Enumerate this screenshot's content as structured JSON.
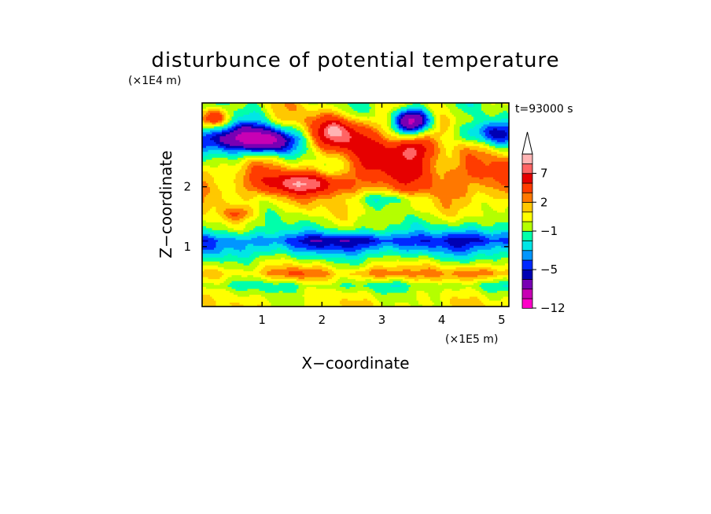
{
  "chart_data": {
    "type": "heatmap",
    "title": "disturbunce of potential temperature",
    "time_label": "t=93000 s",
    "xlabel": "X−coordinate",
    "ylabel": "Z−coordinate",
    "x_scale_label": "(×1E5 m)",
    "y_scale_label": "(×1E4 m)",
    "xlim": [
      0,
      5.12
    ],
    "ylim": [
      0,
      3.4
    ],
    "x_ticks": [
      1,
      2,
      3,
      4,
      5
    ],
    "y_ticks": [
      1,
      2
    ],
    "colorbar": {
      "levels": [
        -12,
        -10,
        -8,
        -6,
        -5,
        -4,
        -3,
        -2,
        -1,
        0,
        1,
        2,
        3,
        5,
        7,
        9,
        11
      ],
      "tick_values": [
        -12,
        -5,
        -1,
        2,
        7
      ],
      "tick_labels": [
        "−12",
        "−5",
        "−1",
        "2",
        "7"
      ],
      "colors": [
        "#ff00c8",
        "#c800b4",
        "#7800b4",
        "#0000b4",
        "#0028ff",
        "#0096ff",
        "#00e6e6",
        "#00ffaa",
        "#b4ff00",
        "#ffff00",
        "#ffc800",
        "#ff7800",
        "#ff3c00",
        "#e60000",
        "#ff6464",
        "#ffb4b4"
      ],
      "extend": "max",
      "position": "right"
    },
    "bands": [
      {
        "z": 0.05,
        "value": 0.5,
        "amp": 0.7
      },
      {
        "z": 0.2,
        "value": 0.0,
        "amp": 0.7
      },
      {
        "z": 0.35,
        "value": -1.2,
        "amp": 0.8
      },
      {
        "z": 0.55,
        "value": 1.5,
        "amp": 0.8
      },
      {
        "z": 0.75,
        "value": -0.5,
        "amp": 0.8
      },
      {
        "z": 0.95,
        "value": -3.0,
        "amp": 0.8
      },
      {
        "z": 1.1,
        "value": -4.0,
        "amp": 0.7
      },
      {
        "z": 1.3,
        "value": -1.0,
        "amp": 0.8
      },
      {
        "z": 1.6,
        "value": 0.3,
        "amp": 0.9
      },
      {
        "z": 1.9,
        "value": 1.8,
        "amp": 1.0
      },
      {
        "z": 2.2,
        "value": 2.0,
        "amp": 1.4
      },
      {
        "z": 2.5,
        "value": 0.5,
        "amp": 1.6
      },
      {
        "z": 2.8,
        "value": -1.0,
        "amp": 1.8
      },
      {
        "z": 3.1,
        "value": 0.8,
        "amp": 1.6
      },
      {
        "z": 3.4,
        "value": 0.0,
        "amp": 1.5
      }
    ],
    "features": [
      {
        "x": 3.35,
        "z": 2.6,
        "rx": 0.75,
        "rz": 0.45,
        "value": 6.0
      },
      {
        "x": 3.5,
        "z": 2.65,
        "rx": 0.3,
        "rz": 0.18,
        "value": 3.0
      },
      {
        "x": 2.3,
        "z": 2.85,
        "rx": 0.45,
        "rz": 0.25,
        "value": 7.0
      },
      {
        "x": 2.2,
        "z": 2.95,
        "rx": 0.12,
        "rz": 0.1,
        "value": 3.0
      },
      {
        "x": 1.7,
        "z": 2.05,
        "rx": 0.7,
        "rz": 0.16,
        "value": 6.0
      },
      {
        "x": 3.55,
        "z": 3.1,
        "rx": 0.35,
        "rz": 0.22,
        "value": -11.0
      },
      {
        "x": 0.45,
        "z": 2.8,
        "rx": 0.6,
        "rz": 0.28,
        "value": -8.0
      },
      {
        "x": 1.1,
        "z": 2.75,
        "rx": 0.35,
        "rz": 0.22,
        "value": -5.5
      },
      {
        "x": 4.7,
        "z": 2.9,
        "rx": 0.5,
        "rz": 0.22,
        "value": -4.5
      },
      {
        "x": 0.2,
        "z": 3.15,
        "rx": 0.2,
        "rz": 0.15,
        "value": 5.0
      },
      {
        "x": 4.7,
        "z": 2.2,
        "rx": 0.5,
        "rz": 0.3,
        "value": 2.0
      },
      {
        "x": 0.6,
        "z": 1.55,
        "rx": 0.3,
        "rz": 0.12,
        "value": 2.5
      },
      {
        "x": 3.2,
        "z": 1.8,
        "rx": 0.6,
        "rz": 0.12,
        "value": -2.5
      },
      {
        "x": 2.5,
        "z": 1.1,
        "rx": 0.8,
        "rz": 0.16,
        "value": -2.0
      },
      {
        "x": 4.6,
        "z": 1.2,
        "rx": 0.6,
        "rz": 0.22,
        "value": -2.0
      },
      {
        "x": 3.0,
        "z": 0.55,
        "rx": 0.4,
        "rz": 0.12,
        "value": 1.8
      },
      {
        "x": 4.6,
        "z": 0.55,
        "rx": 0.55,
        "rz": 0.14,
        "value": 1.8
      },
      {
        "x": 1.5,
        "z": 0.55,
        "rx": 0.35,
        "rz": 0.12,
        "value": 1.5
      }
    ]
  }
}
